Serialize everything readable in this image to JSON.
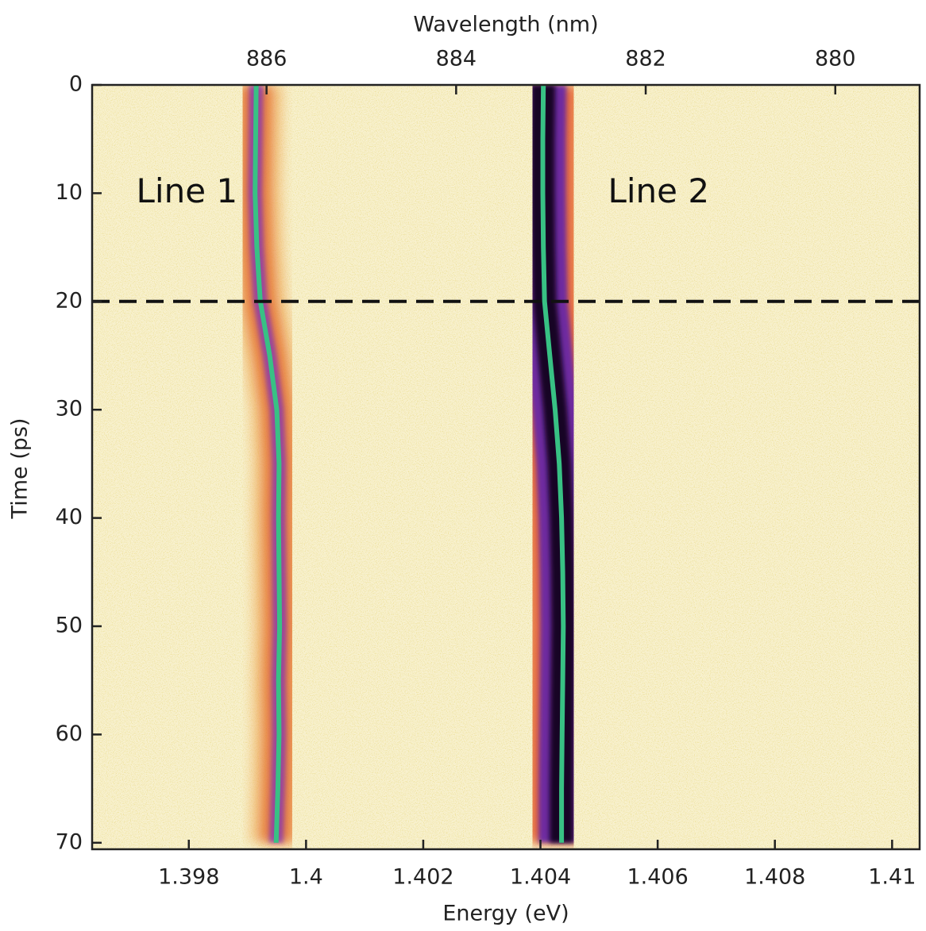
{
  "chart_data": {
    "type": "line",
    "xlabel": "Energy (eV)",
    "ylabel": "Time (ps)",
    "x2label": "Wavelength (nm)",
    "y": [
      0,
      5,
      10,
      15,
      20,
      25,
      30,
      35,
      40,
      45,
      50,
      55,
      60,
      65,
      70
    ],
    "series": [
      {
        "name": "Line 1",
        "color": "#38c184",
        "values": [
          1.39915,
          1.39914,
          1.39913,
          1.39916,
          1.39922,
          1.39938,
          1.3995,
          1.39954,
          1.39953,
          1.39954,
          1.39955,
          1.39953,
          1.39954,
          1.39952,
          1.39949
        ]
      },
      {
        "name": "Line 2",
        "color": "#38c184",
        "values": [
          1.40405,
          1.40404,
          1.40404,
          1.40405,
          1.40407,
          1.40416,
          1.40425,
          1.40432,
          1.40436,
          1.40438,
          1.40439,
          1.40438,
          1.40437,
          1.40436,
          1.40436
        ]
      }
    ],
    "xlim": [
      1.39635,
      1.41047
    ],
    "xticks": [
      1.398,
      1.4,
      1.402,
      1.404,
      1.406,
      1.408,
      1.41
    ],
    "ylim": [
      0,
      70.6
    ],
    "yticks": [
      0,
      10,
      20,
      30,
      40,
      50,
      60,
      70
    ],
    "y_inverted": true,
    "x2lim": [
      887.84,
      879.11
    ],
    "x2ticks": [
      886,
      884,
      882,
      880
    ],
    "hline": 20
  }
}
